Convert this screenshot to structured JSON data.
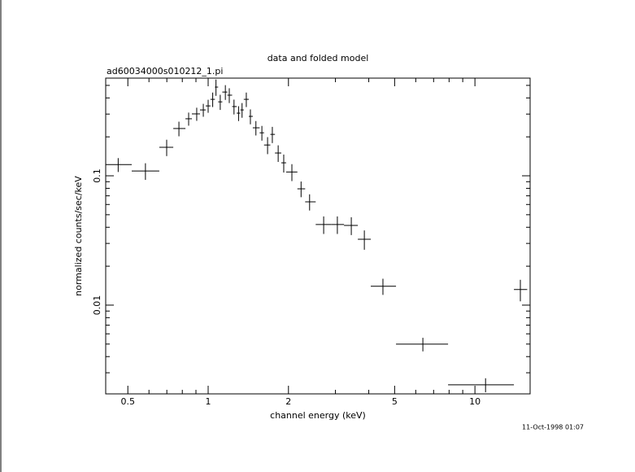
{
  "chart_data": {
    "type": "scatter",
    "title": "data and folded model",
    "subtitle": "ad60034000s010212_1.pi",
    "x_label": "channel energy (keV)",
    "y_label": "normalized counts/sec/keV",
    "annotation": "11-Oct-1998 01:07",
    "xscale": "log",
    "yscale": "log",
    "color": "#000000",
    "xlim": [
      0.413,
      16.1
    ],
    "ylim": [
      0.00206,
      0.569
    ],
    "xticks": [
      0.5,
      1,
      2,
      5,
      10
    ],
    "xminorticks": [
      0.6,
      0.7,
      0.8,
      0.9,
      3,
      4,
      6,
      7,
      8,
      9
    ],
    "yticks": [
      0.01,
      0.1
    ],
    "yminorticks": [
      0.003,
      0.004,
      0.005,
      0.006,
      0.007,
      0.008,
      0.009,
      0.02,
      0.03,
      0.04,
      0.05,
      0.06,
      0.07,
      0.08,
      0.09,
      0.2,
      0.3,
      0.4,
      0.5
    ],
    "x": [
      0.46,
      0.582,
      0.699,
      0.777,
      0.845,
      0.906,
      0.959,
      1.0,
      1.04,
      1.07,
      1.11,
      1.16,
      1.2,
      1.25,
      1.3,
      1.34,
      1.39,
      1.44,
      1.51,
      1.59,
      1.67,
      1.74,
      1.83,
      1.92,
      2.06,
      2.23,
      2.4,
      2.71,
      3.05,
      3.44,
      3.85,
      4.52,
      6.38,
      10.96,
      14.8
    ],
    "bins": [
      0.413,
      0.517,
      0.656,
      0.74,
      0.822,
      0.869,
      0.932,
      0.979,
      1.02,
      1.06,
      1.09,
      1.13,
      1.18,
      1.23,
      1.28,
      1.32,
      1.36,
      1.42,
      1.47,
      1.56,
      1.62,
      1.71,
      1.78,
      1.88,
      1.96,
      2.16,
      2.31,
      2.53,
      2.89,
      3.23,
      3.64,
      4.07,
      5.06,
      7.93,
      14.0,
      15.7
    ],
    "values": [
      0.122,
      0.109,
      0.166,
      0.232,
      0.276,
      0.301,
      0.323,
      0.347,
      0.39,
      0.485,
      0.373,
      0.444,
      0.42,
      0.343,
      0.305,
      0.323,
      0.39,
      0.288,
      0.235,
      0.215,
      0.173,
      0.209,
      0.15,
      0.126,
      0.107,
      0.0793,
      0.0629,
      0.042,
      0.042,
      0.0413,
      0.0323,
      0.014,
      0.00499,
      0.00242,
      0.0132
    ],
    "yerr": [
      0.015,
      0.016,
      0.024,
      0.03,
      0.032,
      0.035,
      0.037,
      0.04,
      0.05,
      0.07,
      0.05,
      0.058,
      0.055,
      0.045,
      0.04,
      0.042,
      0.05,
      0.038,
      0.03,
      0.028,
      0.026,
      0.03,
      0.022,
      0.02,
      0.016,
      0.011,
      0.009,
      0.0065,
      0.0065,
      0.0065,
      0.0055,
      0.002,
      0.0006,
      0.0003,
      0.0025
    ]
  }
}
